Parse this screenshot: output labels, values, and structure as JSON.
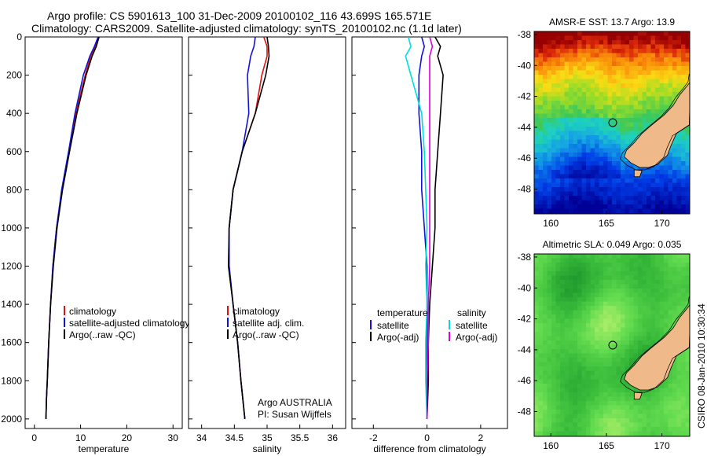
{
  "titles": {
    "line1": "Argo profile: CS 5901613_100 31-Dec-2009 20100102_116 43.699S 165.571E",
    "line2": "Climatology: CARS2009. Satellite-adjusted climatology: synTS_20100102.nc (1.1d later)"
  },
  "stamp": "CSIRO 08-Jan-2010 10:30:34",
  "colors": {
    "climatology": "#dd1111",
    "satellite": "#1111dd",
    "argo": "#000000",
    "satellite_sal": "#00dddd",
    "argo_sal_diff": "#dd00dd",
    "land": "#f0b98a"
  },
  "chart_data": [
    {
      "type": "line",
      "xlabel": "temperature",
      "ylabel": "",
      "xlim": [
        -2,
        32
      ],
      "ylim": [
        2050,
        0
      ],
      "xticks": [
        "0",
        "10",
        "20",
        "30"
      ],
      "yticks": [
        "0",
        "200",
        "400",
        "600",
        "800",
        "1000",
        "1200",
        "1400",
        "1600",
        "1800",
        "2000"
      ],
      "legend": [
        "climatology",
        "satellite-adjusted climatology",
        "Argo(..raw -QC)"
      ],
      "series": [
        {
          "name": "climatology",
          "color": "#dd1111",
          "x": [
            14,
            13.2,
            12.2,
            11,
            9,
            7.5,
            6,
            4.8,
            4,
            3.5,
            3.1,
            2.8,
            2.6,
            2.5
          ],
          "y": [
            0,
            50,
            100,
            200,
            400,
            600,
            800,
            1000,
            1200,
            1400,
            1600,
            1800,
            1900,
            2000
          ]
        },
        {
          "name": "satellite-adjusted climatology",
          "color": "#1111dd",
          "x": [
            13.8,
            13,
            12,
            10.6,
            8.8,
            7.4,
            5.9,
            4.8,
            4,
            3.5,
            3.1,
            2.8,
            2.6,
            2.5
          ],
          "y": [
            0,
            50,
            100,
            200,
            400,
            600,
            800,
            1000,
            1200,
            1400,
            1600,
            1800,
            1900,
            2000
          ]
        },
        {
          "name": "Argo(..raw -QC)",
          "color": "#000000",
          "x": [
            14,
            13.4,
            12.5,
            11.2,
            9.2,
            7.6,
            6.1,
            4.9,
            4.1,
            3.5,
            3.1,
            2.8,
            2.6,
            2.5
          ],
          "y": [
            0,
            50,
            100,
            200,
            400,
            600,
            800,
            1000,
            1200,
            1400,
            1600,
            1800,
            1900,
            2000
          ]
        }
      ]
    },
    {
      "type": "line",
      "xlabel": "salinity",
      "ylabel": "",
      "xlim": [
        33.8,
        36.2
      ],
      "ylim": [
        2050,
        0
      ],
      "xticks": [
        "34",
        "34.5",
        "35",
        "35.5",
        "36"
      ],
      "legend": [
        "climatology",
        "satellite adj. clim.",
        "Argo(..raw -QC)"
      ],
      "annotation": [
        "Argo AUSTRALIA",
        "PI: Susan Wijffels"
      ],
      "series": [
        {
          "name": "climatology",
          "color": "#dd1111",
          "x": [
            34.95,
            35.0,
            35.0,
            34.92,
            34.82,
            34.62,
            34.48,
            34.42,
            34.42,
            34.48,
            34.55,
            34.6,
            34.63,
            34.66
          ],
          "y": [
            0,
            50,
            100,
            200,
            400,
            600,
            800,
            1000,
            1200,
            1400,
            1600,
            1800,
            1900,
            2000
          ]
        },
        {
          "name": "satellite adj. clim.",
          "color": "#1111dd",
          "x": [
            34.82,
            34.8,
            34.75,
            34.7,
            34.72,
            34.62,
            34.48,
            34.42,
            34.42,
            34.48,
            34.55,
            34.6,
            34.63,
            34.66
          ],
          "y": [
            0,
            50,
            100,
            200,
            400,
            600,
            800,
            1000,
            1200,
            1400,
            1600,
            1800,
            1900,
            2000
          ]
        },
        {
          "name": "Argo(..raw -QC)",
          "color": "#000000",
          "x": [
            35.0,
            35.02,
            35.03,
            34.98,
            34.82,
            34.62,
            34.48,
            34.42,
            34.41,
            34.48,
            34.55,
            34.6,
            34.63,
            34.66
          ],
          "y": [
            0,
            50,
            100,
            200,
            400,
            600,
            800,
            1000,
            1200,
            1400,
            1600,
            1800,
            1900,
            2000
          ]
        }
      ]
    },
    {
      "type": "line",
      "xlabel": "difference from climatology",
      "ylabel": "",
      "xlim": [
        -2.8,
        3
      ],
      "ylim": [
        2050,
        0
      ],
      "xticks": [
        "-2",
        "0",
        "2"
      ],
      "legend_groups": [
        {
          "heading": "temperature",
          "items": [
            "satellite",
            "Argo(-adj)"
          ]
        },
        {
          "heading": "salinity",
          "items": [
            "satellite",
            "Argo(-adj)"
          ]
        }
      ],
      "series": [
        {
          "name": "temperature satellite",
          "color": "#1111dd",
          "x": [
            -0.2,
            -0.1,
            -0.2,
            -0.3,
            -0.3,
            -0.2,
            -0.2,
            -0.1,
            0,
            0,
            0,
            0,
            0
          ],
          "y": [
            0,
            50,
            100,
            200,
            400,
            600,
            800,
            1000,
            1200,
            1400,
            1600,
            1800,
            2000
          ]
        },
        {
          "name": "temperature Argo(-adj)",
          "color": "#000000",
          "x": [
            0.3,
            0.5,
            0.4,
            0.6,
            0.5,
            0.4,
            0.3,
            0.3,
            0.2,
            0.1,
            0.05,
            0.05,
            0
          ],
          "y": [
            0,
            50,
            100,
            200,
            400,
            600,
            800,
            1000,
            1200,
            1400,
            1600,
            1800,
            2000
          ]
        },
        {
          "name": "salinity satellite",
          "color": "#00dddd",
          "x": [
            -0.7,
            -0.6,
            -0.8,
            -0.6,
            -0.2,
            -0.1,
            -0.05,
            0,
            -0.05,
            0,
            -0.05,
            -0.05,
            0
          ],
          "y": [
            0,
            50,
            100,
            200,
            400,
            600,
            800,
            1000,
            1200,
            1400,
            1600,
            1800,
            2000
          ]
        },
        {
          "name": "salinity Argo(-adj)",
          "color": "#dd00dd",
          "x": [
            0.1,
            0.2,
            0.1,
            0.1,
            0.1,
            0.1,
            0.1,
            0.1,
            0.1,
            0.05,
            0.05,
            0,
            0
          ],
          "y": [
            0,
            50,
            100,
            200,
            400,
            600,
            800,
            1000,
            1200,
            1400,
            1600,
            1800,
            2000
          ]
        }
      ]
    },
    {
      "type": "heatmap",
      "title": "AMSR-E SST: 13.7 Argo: 13.9",
      "xticks": [
        "160",
        "165",
        "170"
      ],
      "yticks": [
        "-38",
        "-40",
        "-42",
        "-44",
        "-46",
        "-48"
      ],
      "xlim": [
        158.5,
        172.5
      ],
      "ylim": [
        -37.8,
        -49.6
      ],
      "marker": {
        "lon": 165.57,
        "lat": -43.7
      }
    },
    {
      "type": "heatmap",
      "title": "Altimetric SLA: 0.049 Argo: 0.035",
      "xticks": [
        "160",
        "165",
        "170"
      ],
      "yticks": [
        "-38",
        "-40",
        "-42",
        "-44",
        "-46",
        "-48"
      ],
      "xlim": [
        158.5,
        172.5
      ],
      "ylim": [
        -37.8,
        -49.6
      ],
      "marker": {
        "lon": 165.57,
        "lat": -43.7
      }
    }
  ]
}
